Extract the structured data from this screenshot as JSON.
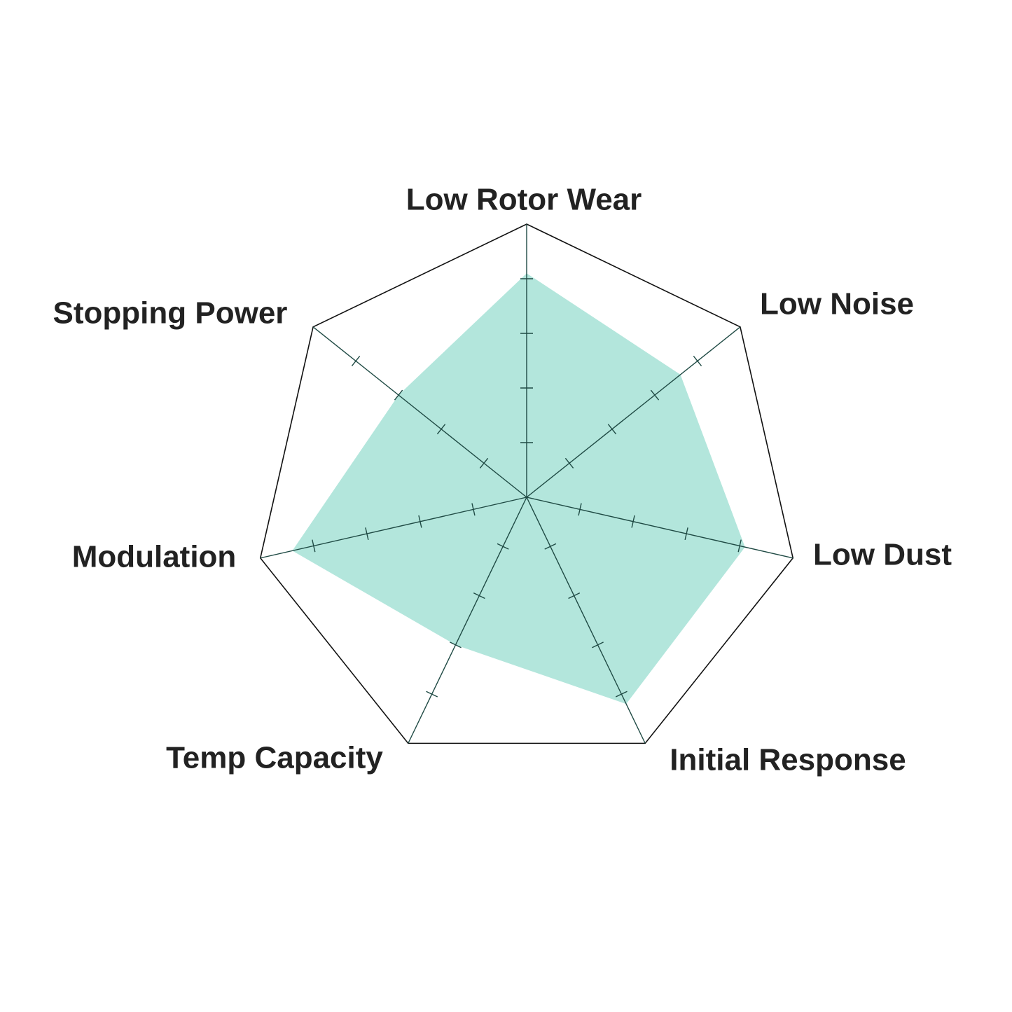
{
  "chart_data": {
    "type": "radar",
    "categories": [
      "Low Rotor Wear",
      "Low Noise",
      "Low Dust",
      "Initial Response",
      "Temp Capacity",
      "Modulation",
      "Stopping Power"
    ],
    "values": [
      4.1,
      3.6,
      4.1,
      4.2,
      3.0,
      4.4,
      3.0
    ],
    "color": "#b3e6dc",
    "rlim": [
      0,
      5
    ],
    "rticks": [
      1,
      2,
      3,
      4
    ]
  }
}
